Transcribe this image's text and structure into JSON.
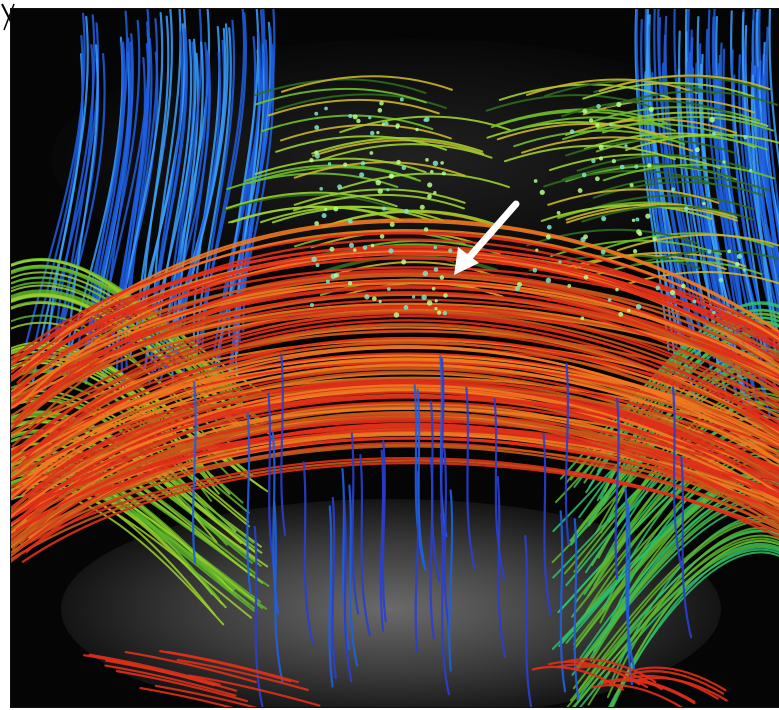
{
  "image": {
    "subject": "",
    "annotation": {
      "icon": "arrow-icon",
      "color": "#ffffff"
    },
    "palette": {
      "background": "#050505",
      "slice_gray": "#4a4a4a",
      "red": "#e0301a",
      "orange": "#f07a20",
      "green": "#6fbf2a",
      "dark_green": "#2f6b1e",
      "blue": "#1f5fe0",
      "light_blue": "#3aa0ff",
      "dots": "#7fe6c8"
    }
  }
}
